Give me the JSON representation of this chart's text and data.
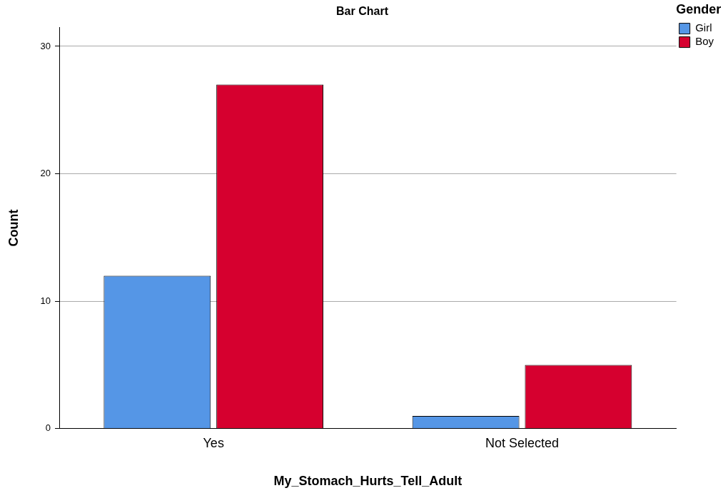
{
  "chart_data": {
    "type": "bar",
    "title": "Bar Chart",
    "xlabel": "My_Stomach_Hurts_Tell_Adult",
    "ylabel": "Count",
    "legend_title": "Gender",
    "categories": [
      "Yes",
      "Not Selected"
    ],
    "series": [
      {
        "name": "Girl",
        "color": "#5596e6",
        "values": [
          12,
          1
        ]
      },
      {
        "name": "Boy",
        "color": "#d6002f",
        "values": [
          27,
          5
        ]
      }
    ],
    "ylim": [
      0,
      31.5
    ],
    "yticks": [
      0,
      10,
      20,
      30
    ],
    "grid": "y",
    "legend": "top right"
  }
}
